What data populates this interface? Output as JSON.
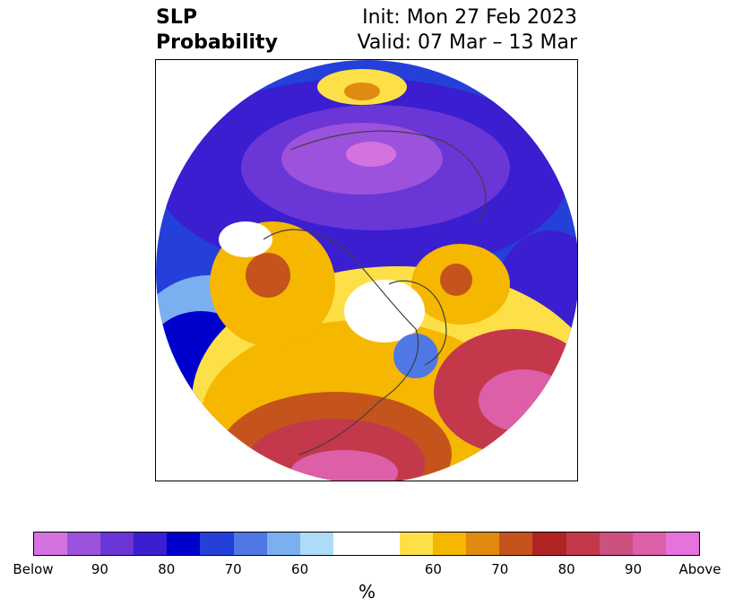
{
  "title": {
    "left_line1": "SLP",
    "left_line2": "Probability",
    "right_line1": "Init: Mon 27 Feb 2023",
    "right_line2": "Valid: 07 Mar – 13 Mar"
  },
  "colorbar": {
    "colors": [
      "#d473e0",
      "#9c52dc",
      "#6a36d6",
      "#3a1ed0",
      "#0000cc",
      "#2440d8",
      "#4f78e4",
      "#7ab0f0",
      "#acdcf8",
      "#ffffff",
      "#ffffff",
      "#fde047",
      "#f5b700",
      "#e08a10",
      "#c4541c",
      "#b02424",
      "#c4384c",
      "#cc5080",
      "#dc5fa8",
      "#e673dc"
    ],
    "labels": [
      "Below",
      "90",
      "80",
      "70",
      "60",
      "60",
      "70",
      "80",
      "90",
      "Above"
    ],
    "unit": "%"
  },
  "legend_colors": {
    "below_90": "#9c52dc",
    "below_80": "#0000cc",
    "below_60": "#acdcf8",
    "above_60": "#fde047",
    "above_70": "#e08a10",
    "above_80": "#b02424",
    "above_90": "#dc5fa8"
  }
}
